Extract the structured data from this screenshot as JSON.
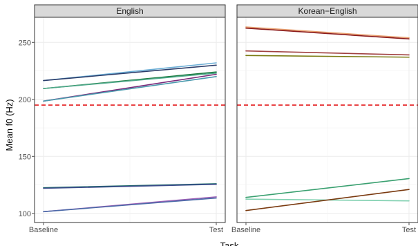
{
  "chart_data": {
    "type": "line",
    "xlabel": "Task",
    "ylabel": "Mean f0 (Hz)",
    "categories": [
      "Baseline",
      "Test"
    ],
    "ylim": [
      92,
      272
    ],
    "yticks": [
      100,
      150,
      200,
      250
    ],
    "reference_line": {
      "y": 195,
      "color": "#e41a1c",
      "style": "dashed"
    },
    "grid": true,
    "facets": [
      {
        "label": "English",
        "series": [
          {
            "values": [
              216.5,
              232
            ],
            "color": "#6baed6"
          },
          {
            "values": [
              216.5,
              230
            ],
            "color": "#2c3e6b"
          },
          {
            "values": [
              209.5,
              224
            ],
            "color": "#1b7a3e"
          },
          {
            "values": [
              209.5,
              223
            ],
            "color": "#4ea88a"
          },
          {
            "values": [
              198.5,
              222
            ],
            "color": "#7a2a7a"
          },
          {
            "values": [
              198.5,
              220
            ],
            "color": "#4a9aae"
          },
          {
            "values": [
              122.5,
              126
            ],
            "color": "#1f6b6b"
          },
          {
            "values": [
              122.0,
              125.5
            ],
            "color": "#3a4a8a"
          },
          {
            "values": [
              101.5,
              114.5
            ],
            "color": "#9b5fb5"
          },
          {
            "values": [
              101.5,
              113.5
            ],
            "color": "#4a6aa8"
          }
        ]
      },
      {
        "label": "Korean−English",
        "series": [
          {
            "values": [
              263.5,
              254
            ],
            "color": "#e8a070"
          },
          {
            "values": [
              262.5,
              253
            ],
            "color": "#8b1a1a"
          },
          {
            "values": [
              242.5,
              239
            ],
            "color": "#a04040"
          },
          {
            "values": [
              238.5,
              237
            ],
            "color": "#7a7a10"
          },
          {
            "values": [
              114.0,
              130.5
            ],
            "color": "#3aa070"
          },
          {
            "values": [
              112.5,
              111
            ],
            "color": "#80d0b0"
          },
          {
            "values": [
              102.5,
              121
            ],
            "color": "#7a3a10"
          }
        ]
      }
    ]
  }
}
